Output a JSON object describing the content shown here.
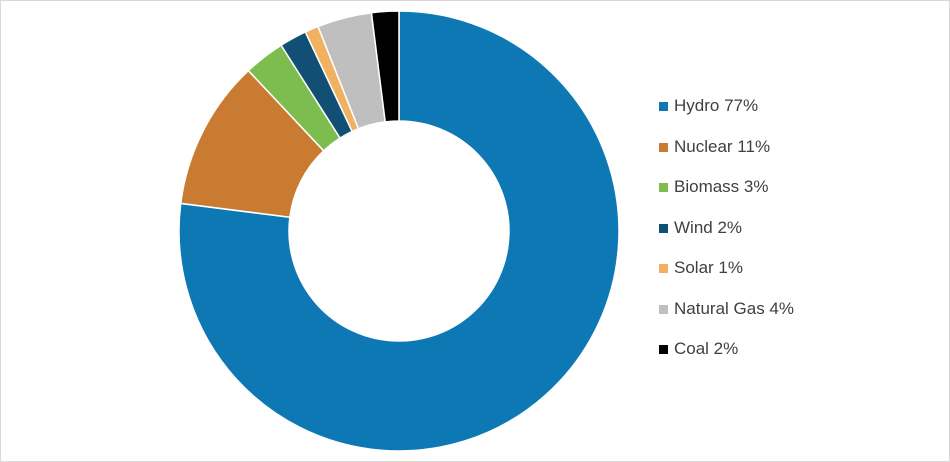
{
  "chart_data": {
    "type": "pie",
    "variant": "donut",
    "title": "",
    "legend_position": "right",
    "start_angle_deg": 0,
    "direction": "clockwise",
    "slices": [
      {
        "label": "Hydro 77%",
        "name": "Hydro",
        "value": 77,
        "color": "#0E78B5"
      },
      {
        "label": "Nuclear 11%",
        "name": "Nuclear",
        "value": 11,
        "color": "#C97B32"
      },
      {
        "label": "Biomass 3%",
        "name": "Biomass",
        "value": 3,
        "color": "#7DBD4F"
      },
      {
        "label": "Wind 2%",
        "name": "Wind",
        "value": 2,
        "color": "#124F74"
      },
      {
        "label": "Solar 1%",
        "name": "Solar",
        "value": 1,
        "color": "#F0B262"
      },
      {
        "label": "Natural Gas 4%",
        "name": "Natural Gas",
        "value": 4,
        "color": "#BFBFBF"
      },
      {
        "label": "Coal 2%",
        "name": "Coal",
        "value": 2,
        "color": "#000000"
      }
    ]
  }
}
